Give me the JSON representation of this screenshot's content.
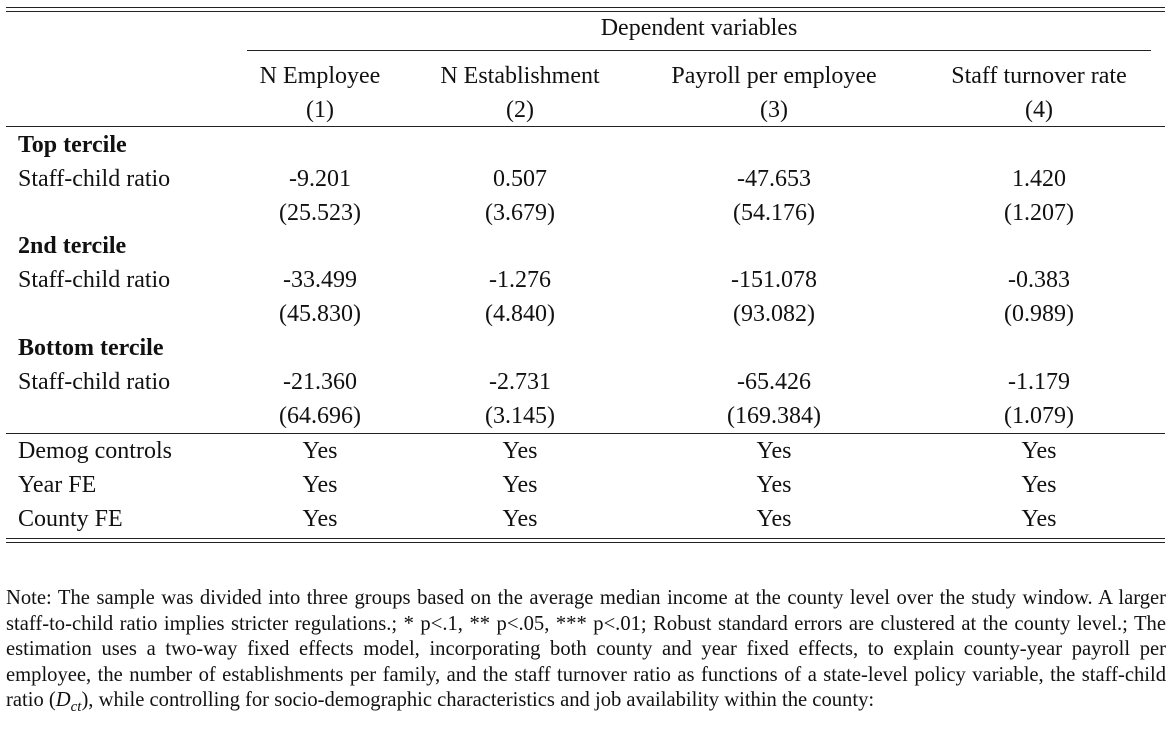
{
  "table": {
    "super_header": "Dependent variables",
    "columns": [
      {
        "name": "N Employee",
        "num": "(1)"
      },
      {
        "name": "N Establishment",
        "num": "(2)"
      },
      {
        "name": "Payroll per employee",
        "num": "(3)"
      },
      {
        "name": "Staff turnover rate",
        "num": "(4)"
      }
    ],
    "groups": [
      {
        "title": "Top tercile",
        "row_label": "Staff-child ratio",
        "coefs": [
          "-9.201",
          "0.507",
          "-47.653",
          "1.420"
        ],
        "ses": [
          "(25.523)",
          "(3.679)",
          "(54.176)",
          "(1.207)"
        ]
      },
      {
        "title": "2nd tercile",
        "row_label": "Staff-child ratio",
        "coefs": [
          "-33.499",
          "-1.276",
          "-151.078",
          "-0.383"
        ],
        "ses": [
          "(45.830)",
          "(4.840)",
          "(93.082)",
          "(0.989)"
        ]
      },
      {
        "title": "Bottom tercile",
        "row_label": "Staff-child ratio",
        "coefs": [
          "-21.360",
          "-2.731",
          "-65.426",
          "-1.179"
        ],
        "ses": [
          "(64.696)",
          "(3.145)",
          "(169.384)",
          "(1.079)"
        ]
      }
    ],
    "controls": [
      {
        "label": "Demog controls",
        "values": [
          "Yes",
          "Yes",
          "Yes",
          "Yes"
        ]
      },
      {
        "label": "Year FE",
        "values": [
          "Yes",
          "Yes",
          "Yes",
          "Yes"
        ]
      },
      {
        "label": "County FE",
        "values": [
          "Yes",
          "Yes",
          "Yes",
          "Yes"
        ]
      }
    ]
  },
  "note": {
    "part1": "Note: The sample was divided into three groups based on the average median income at the county level over the study window. A larger staff-to-child ratio implies stricter regulations.; * p<.1, ** p<.05, *** p<.01; Robust standard errors are clustered at the county level.; The estimation uses a two-way fixed effects model, incorporating both county and year fixed effects, to explain county-year payroll per employee, the number of establishments per family, and the staff turnover ratio as functions of a state-level policy variable, the staff-child ratio (",
    "math_main": "D",
    "math_sub": "ct",
    "part2": "), while controlling for socio-demographic characteristics and job availability within the county:"
  }
}
